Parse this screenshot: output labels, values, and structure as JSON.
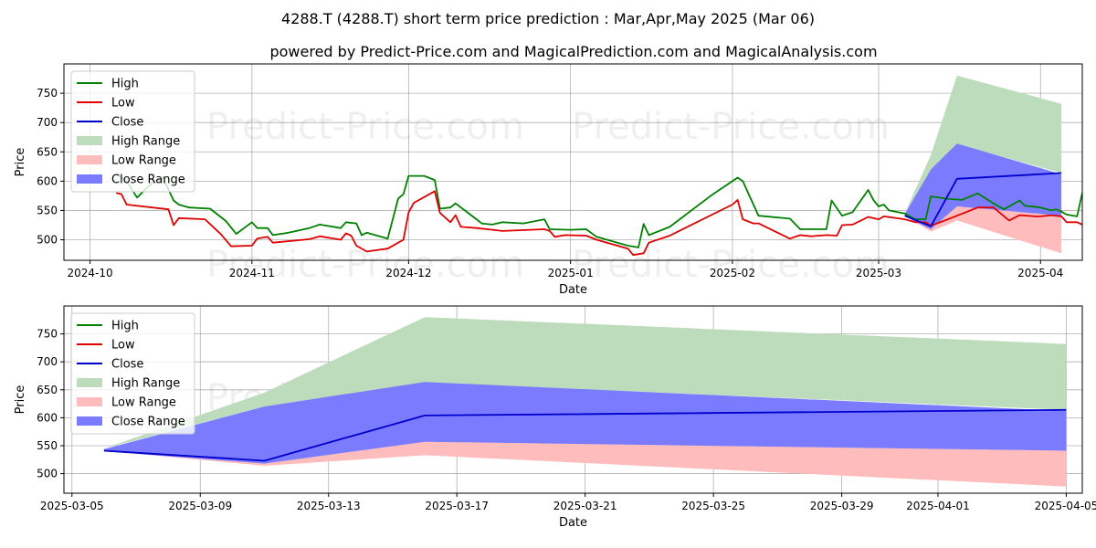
{
  "title": "4288.T (4288.T) short term price prediction : Mar,Apr,May 2025 (Mar 06)",
  "subtitle": "powered by Predict-Price.com and MagicalPrediction.com and MagicalAnalysis.com",
  "watermark": "Predict-Price.com",
  "colors": {
    "high": "#008000",
    "low": "#e00000",
    "close": "#0000cc",
    "high_range": "#bcdcbc",
    "low_range": "#ffbcbc",
    "close_range": "#7b7bff"
  },
  "chart_data": [
    {
      "type": "line",
      "xlabel": "Date",
      "ylabel": "Price",
      "x_axis": "date",
      "xlim": [
        "2024-09-26",
        "2025-04-09"
      ],
      "ylim": [
        465,
        800
      ],
      "x_ticks": [
        "2024-10-01",
        "2024-11-01",
        "2024-12-01",
        "2025-01-01",
        "2025-02-01",
        "2025-03-01",
        "2025-04-01"
      ],
      "x_tick_labels": [
        "2024-10",
        "2024-11",
        "2024-12",
        "2025-01",
        "2025-02",
        "2025-03",
        "2025-04"
      ],
      "y_ticks": [
        500,
        550,
        600,
        650,
        700,
        750
      ],
      "grid": true,
      "legend_position": "upper-left",
      "legend": [
        "High",
        "Low",
        "Close",
        "High Range",
        "Low Range",
        "Close Range"
      ],
      "series": [
        {
          "name": "High",
          "color": "#008000",
          "points": [
            [
              "2024-10-06",
              612
            ],
            [
              "2024-10-08",
              600
            ],
            [
              "2024-10-10",
              572
            ],
            [
              "2024-10-13",
              598
            ],
            [
              "2024-10-15",
              605
            ],
            [
              "2024-10-17",
              567
            ],
            [
              "2024-10-18",
              560
            ],
            [
              "2024-10-20",
              555
            ],
            [
              "2024-10-24",
              553
            ],
            [
              "2024-10-27",
              532
            ],
            [
              "2024-10-29",
              510
            ],
            [
              "2024-11-01",
              530
            ],
            [
              "2024-11-02",
              520
            ],
            [
              "2024-11-04",
              520
            ],
            [
              "2024-11-05",
              508
            ],
            [
              "2024-11-08",
              512
            ],
            [
              "2024-11-12",
              520
            ],
            [
              "2024-11-14",
              526
            ],
            [
              "2024-11-18",
              520
            ],
            [
              "2024-11-19",
              530
            ],
            [
              "2024-11-21",
              528
            ],
            [
              "2024-11-22",
              508
            ],
            [
              "2024-11-23",
              512
            ],
            [
              "2024-11-27",
              502
            ],
            [
              "2024-11-29",
              570
            ],
            [
              "2024-11-30",
              578
            ],
            [
              "2024-12-01",
              609
            ],
            [
              "2024-12-04",
              609
            ],
            [
              "2024-12-06",
              602
            ],
            [
              "2024-12-07",
              553
            ],
            [
              "2024-12-09",
              555
            ],
            [
              "2024-12-10",
              562
            ],
            [
              "2024-12-14",
              535
            ],
            [
              "2024-12-15",
              528
            ],
            [
              "2024-12-17",
              526
            ],
            [
              "2024-12-19",
              530
            ],
            [
              "2024-12-23",
              528
            ],
            [
              "2024-12-27",
              535
            ],
            [
              "2024-12-28",
              518
            ],
            [
              "2025-01-01",
              517
            ],
            [
              "2025-01-04",
              518
            ],
            [
              "2025-01-06",
              505
            ],
            [
              "2025-01-12",
              490
            ],
            [
              "2025-01-14",
              487
            ],
            [
              "2025-01-15",
              527
            ],
            [
              "2025-01-16",
              508
            ],
            [
              "2025-01-20",
              522
            ],
            [
              "2025-01-28",
              576
            ],
            [
              "2025-02-02",
              606
            ],
            [
              "2025-02-03",
              600
            ],
            [
              "2025-02-06",
              541
            ],
            [
              "2025-02-12",
              536
            ],
            [
              "2025-02-14",
              518
            ],
            [
              "2025-02-19",
              518
            ],
            [
              "2025-02-20",
              567
            ],
            [
              "2025-02-22",
              541
            ],
            [
              "2025-02-24",
              547
            ],
            [
              "2025-02-27",
              585
            ],
            [
              "2025-02-28",
              568
            ],
            [
              "2025-03-01",
              557
            ],
            [
              "2025-03-02",
              560
            ],
            [
              "2025-03-03",
              550
            ],
            [
              "2025-03-06",
              545
            ],
            [
              "2025-03-08",
              535
            ],
            [
              "2025-03-10",
              535
            ],
            [
              "2025-03-11",
              574
            ],
            [
              "2025-03-14",
              570
            ],
            [
              "2025-03-17",
              568
            ],
            [
              "2025-03-18",
              572
            ],
            [
              "2025-03-20",
              579
            ],
            [
              "2025-03-23",
              562
            ],
            [
              "2025-03-25",
              552
            ],
            [
              "2025-03-28",
              567
            ],
            [
              "2025-03-29",
              558
            ],
            [
              "2025-04-01",
              555
            ],
            [
              "2025-04-03",
              550
            ],
            [
              "2025-04-04",
              552
            ],
            [
              "2025-04-05",
              548
            ],
            [
              "2025-04-06",
              543
            ],
            [
              "2025-04-08",
              540
            ],
            [
              "2025-04-09",
              580
            ],
            [
              "2025-04-10",
              548
            ]
          ]
        },
        {
          "name": "Low",
          "color": "#e00000",
          "points": [
            [
              "2024-10-06",
              580
            ],
            [
              "2024-10-07",
              578
            ],
            [
              "2024-10-08",
              560
            ],
            [
              "2024-10-16",
              552
            ],
            [
              "2024-10-17",
              525
            ],
            [
              "2024-10-18",
              537
            ],
            [
              "2024-10-23",
              535
            ],
            [
              "2024-10-26",
              510
            ],
            [
              "2024-10-28",
              489
            ],
            [
              "2024-11-01",
              490
            ],
            [
              "2024-11-02",
              502
            ],
            [
              "2024-11-04",
              505
            ],
            [
              "2024-11-05",
              495
            ],
            [
              "2024-11-12",
              501
            ],
            [
              "2024-11-14",
              506
            ],
            [
              "2024-11-18",
              500
            ],
            [
              "2024-11-19",
              511
            ],
            [
              "2024-11-20",
              507
            ],
            [
              "2024-11-21",
              490
            ],
            [
              "2024-11-23",
              480
            ],
            [
              "2024-11-27",
              485
            ],
            [
              "2024-11-30",
              500
            ],
            [
              "2024-12-01",
              547
            ],
            [
              "2024-12-02",
              563
            ],
            [
              "2024-12-06",
              583
            ],
            [
              "2024-12-07",
              546
            ],
            [
              "2024-12-09",
              530
            ],
            [
              "2024-12-10",
              542
            ],
            [
              "2024-12-11",
              522
            ],
            [
              "2024-12-14",
              520
            ],
            [
              "2024-12-19",
              515
            ],
            [
              "2024-12-27",
              518
            ],
            [
              "2024-12-28",
              515
            ],
            [
              "2024-12-29",
              505
            ],
            [
              "2024-12-31",
              508
            ],
            [
              "2025-01-04",
              507
            ],
            [
              "2025-01-06",
              500
            ],
            [
              "2025-01-12",
              485
            ],
            [
              "2025-01-13",
              474
            ],
            [
              "2025-01-15",
              477
            ],
            [
              "2025-01-16",
              495
            ],
            [
              "2025-01-20",
              507
            ],
            [
              "2025-02-01",
              560
            ],
            [
              "2025-02-02",
              568
            ],
            [
              "2025-02-03",
              535
            ],
            [
              "2025-02-05",
              528
            ],
            [
              "2025-02-06",
              528
            ],
            [
              "2025-02-12",
              502
            ],
            [
              "2025-02-14",
              508
            ],
            [
              "2025-02-16",
              506
            ],
            [
              "2025-02-19",
              508
            ],
            [
              "2025-02-21",
              507
            ],
            [
              "2025-02-22",
              525
            ],
            [
              "2025-02-24",
              526
            ],
            [
              "2025-02-27",
              539
            ],
            [
              "2025-03-01",
              535
            ],
            [
              "2025-03-02",
              540
            ],
            [
              "2025-03-06",
              535
            ],
            [
              "2025-03-08",
              530
            ],
            [
              "2025-03-10",
              530
            ],
            [
              "2025-03-11",
              524
            ],
            [
              "2025-03-14",
              534
            ],
            [
              "2025-03-18",
              548
            ],
            [
              "2025-03-20",
              555
            ],
            [
              "2025-03-23",
              555
            ],
            [
              "2025-03-26",
              533
            ],
            [
              "2025-03-28",
              542
            ],
            [
              "2025-03-31",
              540
            ],
            [
              "2025-04-01",
              540
            ],
            [
              "2025-04-03",
              542
            ],
            [
              "2025-04-05",
              540
            ],
            [
              "2025-04-06",
              530
            ],
            [
              "2025-04-08",
              530
            ],
            [
              "2025-04-09",
              526
            ],
            [
              "2025-04-10",
              530
            ]
          ]
        },
        {
          "name": "Close",
          "color": "#0000cc",
          "points": [
            [
              "2025-03-06",
              541
            ],
            [
              "2025-03-11",
              523
            ],
            [
              "2025-03-16",
              604
            ],
            [
              "2025-04-05",
              614
            ]
          ]
        }
      ],
      "ranges": [
        {
          "name": "High Range",
          "color": "#bcdcbc",
          "x": [
            "2025-03-06",
            "2025-03-11",
            "2025-03-16",
            "2025-04-05"
          ],
          "upper": [
            545,
            645,
            780,
            732
          ],
          "lower": [
            545,
            620,
            663,
            614
          ]
        },
        {
          "name": "Low Range",
          "color": "#ffbcbc",
          "x": [
            "2025-03-06",
            "2025-03-11",
            "2025-03-16",
            "2025-04-05"
          ],
          "upper": [
            541,
            518,
            557,
            541
          ],
          "lower": [
            541,
            514,
            533,
            477
          ]
        },
        {
          "name": "Close Range",
          "color": "#7b7bff",
          "x": [
            "2025-03-06",
            "2025-03-11",
            "2025-03-16",
            "2025-04-05"
          ],
          "upper": [
            544,
            620,
            664,
            612
          ],
          "lower": [
            540,
            518,
            557,
            541
          ]
        }
      ]
    },
    {
      "type": "line",
      "xlabel": "Date",
      "ylabel": "Price",
      "x_axis": "date",
      "xlim": [
        "2025-03-04T18:00",
        "2025-04-05T12:00"
      ],
      "ylim": [
        465,
        800
      ],
      "x_ticks": [
        "2025-03-05",
        "2025-03-09",
        "2025-03-13",
        "2025-03-17",
        "2025-03-21",
        "2025-03-25",
        "2025-03-29",
        "2025-04-01",
        "2025-04-05"
      ],
      "x_tick_labels": [
        "2025-03-05",
        "2025-03-09",
        "2025-03-13",
        "2025-03-17",
        "2025-03-21",
        "2025-03-25",
        "2025-03-29",
        "2025-04-01",
        "2025-04-05"
      ],
      "y_ticks": [
        500,
        550,
        600,
        650,
        700,
        750
      ],
      "grid": true,
      "legend_position": "upper-left",
      "legend": [
        "High",
        "Low",
        "Close",
        "High Range",
        "Low Range",
        "Close Range"
      ],
      "series": [
        {
          "name": "Close",
          "color": "#0000cc",
          "points": [
            [
              "2025-03-06",
              541
            ],
            [
              "2025-03-11",
              523
            ],
            [
              "2025-03-16",
              604
            ],
            [
              "2025-04-05",
              614
            ]
          ]
        }
      ],
      "ranges": [
        {
          "name": "High Range",
          "color": "#bcdcbc",
          "x": [
            "2025-03-06",
            "2025-03-11",
            "2025-03-16",
            "2025-04-05"
          ],
          "upper": [
            545,
            645,
            780,
            732
          ],
          "lower": [
            545,
            620,
            663,
            614
          ]
        },
        {
          "name": "Low Range",
          "color": "#ffbcbc",
          "x": [
            "2025-03-06",
            "2025-03-11",
            "2025-03-16",
            "2025-04-05"
          ],
          "upper": [
            541,
            518,
            557,
            541
          ],
          "lower": [
            541,
            514,
            533,
            477
          ]
        },
        {
          "name": "Close Range",
          "color": "#7b7bff",
          "x": [
            "2025-03-06",
            "2025-03-11",
            "2025-03-16",
            "2025-04-05"
          ],
          "upper": [
            544,
            620,
            664,
            612
          ],
          "lower": [
            540,
            518,
            557,
            541
          ]
        }
      ]
    }
  ]
}
